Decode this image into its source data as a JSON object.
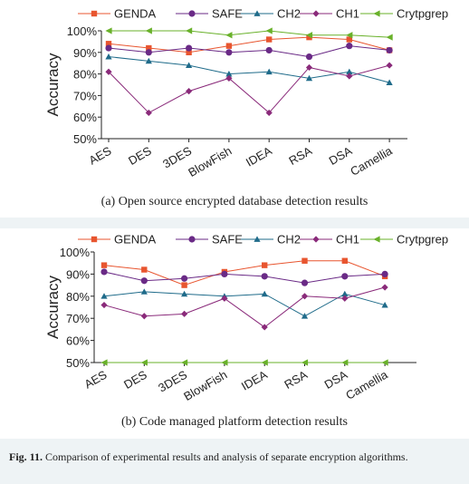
{
  "figure": {
    "label": "Fig. 11.",
    "caption": "Comparison of experimental results and analysis of separate encryption algorithms."
  },
  "colors": {
    "GENDA": "#e8552f",
    "SAFE": "#6a2a86",
    "CH2": "#1f6b8a",
    "CH1": "#8a2a7a",
    "Crytpgrep": "#69b12a"
  },
  "chart_data": [
    {
      "type": "line",
      "caption": "(a)  Open source encrypted database detection results",
      "ylabel": "Accuracy",
      "ylim": [
        50,
        100
      ],
      "yticks": [
        "50%",
        "60%",
        "70%",
        "80%",
        "90%",
        "100%"
      ],
      "categories": [
        "AES",
        "DES",
        "3DES",
        "BlowFish",
        "IDEA",
        "RSA",
        "DSA",
        "Camellia"
      ],
      "legend_position": "top",
      "series": [
        {
          "name": "GENDA",
          "values": [
            94,
            92,
            90,
            93,
            96,
            97,
            96,
            91
          ]
        },
        {
          "name": "SAFE",
          "values": [
            92,
            90,
            92,
            90,
            91,
            88,
            93,
            91
          ]
        },
        {
          "name": "CH2",
          "values": [
            88,
            86,
            84,
            80,
            81,
            78,
            81,
            76
          ]
        },
        {
          "name": "CH1",
          "values": [
            81,
            62,
            72,
            78,
            62,
            83,
            79,
            84
          ]
        },
        {
          "name": "Crytpgrep",
          "values": [
            100,
            100,
            100,
            98,
            100,
            98,
            98,
            97
          ]
        }
      ]
    },
    {
      "type": "line",
      "caption": "(b)  Code managed platform detection results",
      "ylabel": "Accuracy",
      "ylim": [
        50,
        100
      ],
      "yticks": [
        "50%",
        "60%",
        "70%",
        "80%",
        "90%",
        "100%"
      ],
      "categories": [
        "AES",
        "DES",
        "3DES",
        "BlowFish",
        "IDEA",
        "RSA",
        "DSA",
        "Camellia"
      ],
      "legend_position": "top",
      "series": [
        {
          "name": "GENDA",
          "values": [
            94,
            92,
            85,
            91,
            94,
            96,
            96,
            89
          ]
        },
        {
          "name": "SAFE",
          "values": [
            91,
            87,
            88,
            90,
            89,
            86,
            89,
            90
          ]
        },
        {
          "name": "CH2",
          "values": [
            80,
            82,
            81,
            80,
            81,
            71,
            81,
            76
          ]
        },
        {
          "name": "CH1",
          "values": [
            76,
            71,
            72,
            79,
            66,
            80,
            79,
            84
          ]
        },
        {
          "name": "Crytpgrep",
          "values": [
            50,
            50,
            50,
            50,
            50,
            50,
            50,
            50
          ]
        }
      ]
    }
  ]
}
